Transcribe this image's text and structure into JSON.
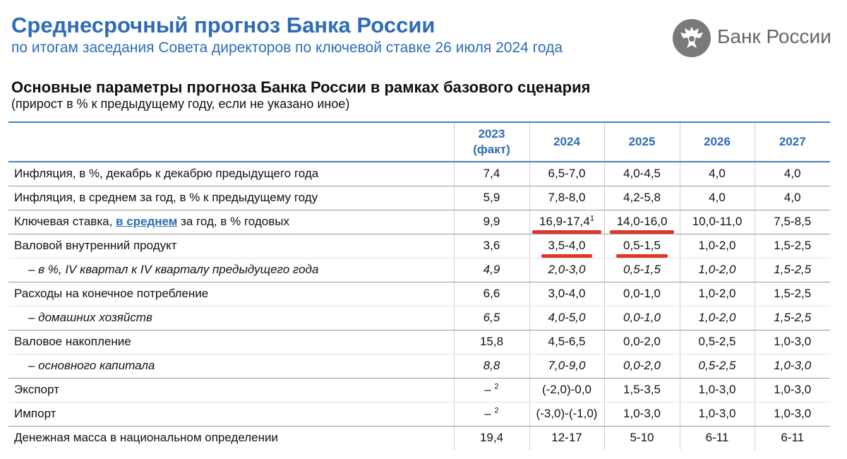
{
  "header": {
    "title": "Среднесрочный прогноз Банка России",
    "subtitle": "по итогам заседания Совета директоров по ключевой ставке 26 июля 2024 года",
    "logo_text": "Банк России",
    "logo_icon": "eagle-emblem-icon"
  },
  "section": {
    "title": "Основные параметры прогноза Банка России в рамках базового сценария",
    "note": "(прирост в % к предыдущему году, если не указано иное)"
  },
  "table": {
    "columns": [
      {
        "line1": "2023",
        "line2": "(факт)"
      },
      {
        "line1": "2024"
      },
      {
        "line1": "2025"
      },
      {
        "line1": "2026"
      },
      {
        "line1": "2027"
      }
    ],
    "rows": [
      {
        "label": "Инфляция, в %, декабрь к декабрю предыдущего года",
        "values": [
          "7,4",
          "6,5-7,0",
          "4,0-4,5",
          "4,0",
          "4,0"
        ]
      },
      {
        "label": "Инфляция, в среднем за год, в % к предыдущему году",
        "values": [
          "5,9",
          "7,8-8,0",
          "4,2-5,8",
          "4,0",
          "4,0"
        ]
      },
      {
        "label_before": "Ключевая ставка, ",
        "label_link": "в среднем",
        "label_after": " за год, в % годовых",
        "values": [
          "9,9",
          "16,9-17,4",
          "14,0-16,0",
          "10,0-11,0",
          "7,5-8,5"
        ],
        "footnote_2024": "1"
      },
      {
        "label": "Валовой внутренний продукт",
        "values": [
          "3,6",
          "3,5-4,0",
          "0,5-1,5",
          "1,0-2,0",
          "1,5-2,5"
        ]
      },
      {
        "label": "– в %, IV квартал к IV кварталу предыдущего года",
        "values": [
          "4,9",
          "2,0-3,0",
          "0,5-1,5",
          "1,0-2,0",
          "1,5-2,5"
        ]
      },
      {
        "label": "Расходы на конечное потребление",
        "values": [
          "6,6",
          "3,0-4,0",
          "0,0-1,0",
          "1,0-2,0",
          "1,5-2,5"
        ]
      },
      {
        "label": "– домашних хозяйств",
        "values": [
          "6,5",
          "4,0-5,0",
          "0,0-1,0",
          "1,0-2,0",
          "1,5-2,5"
        ]
      },
      {
        "label": "Валовое накопление",
        "values": [
          "15,8",
          "4,5-6,5",
          "0,0-2,0",
          "0,5-2,5",
          "1,0-3,0"
        ]
      },
      {
        "label": "– основного капитала",
        "values": [
          "8,8",
          "7,0-9,0",
          "0,0-2,0",
          "0,5-2,5",
          "1,0-3,0"
        ]
      },
      {
        "label": "Экспорт",
        "values": [
          "–",
          "(-2,0)-0,0",
          "1,5-3,5",
          "1,0-3,0",
          "1,0-3,0"
        ],
        "footnote_2023": "2"
      },
      {
        "label": "Импорт",
        "values": [
          "–",
          "(-3,0)-(-1,0)",
          "1,0-3,0",
          "1,0-3,0",
          "1,0-3,0"
        ],
        "footnote_2023": "2"
      },
      {
        "label": "Денежная масса в национальном определении",
        "values": [
          "19,4",
          "12-17",
          "5-10",
          "6-11",
          "6-11"
        ]
      }
    ]
  },
  "colors": {
    "accent": "#2e6cb6",
    "highlight": "#e0352b",
    "logo_grey": "#7a7a7a"
  }
}
